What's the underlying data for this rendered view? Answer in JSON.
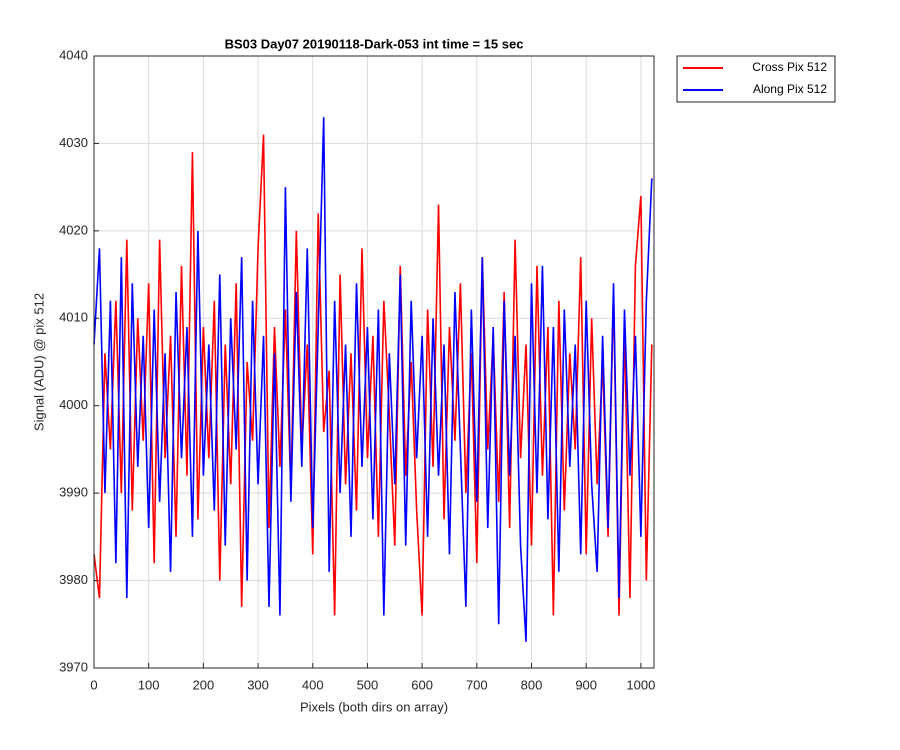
{
  "chart_data": {
    "type": "line",
    "title": "BS03 Day07 20190118-Dark-053 int time = 15 sec",
    "x_label": "Pixels (both dirs on array)",
    "y_label": "Signal (ADU) @ pix 512",
    "x": [
      0,
      10,
      20,
      30,
      40,
      50,
      60,
      70,
      80,
      90,
      100,
      110,
      120,
      130,
      140,
      150,
      160,
      170,
      180,
      190,
      200,
      210,
      220,
      230,
      240,
      250,
      260,
      270,
      280,
      290,
      300,
      310,
      320,
      330,
      340,
      350,
      360,
      370,
      380,
      390,
      400,
      410,
      420,
      430,
      440,
      450,
      460,
      470,
      480,
      490,
      500,
      510,
      520,
      530,
      540,
      550,
      560,
      570,
      580,
      590,
      600,
      610,
      620,
      630,
      640,
      650,
      660,
      670,
      680,
      690,
      700,
      710,
      720,
      730,
      740,
      750,
      760,
      770,
      780,
      790,
      800,
      810,
      820,
      830,
      840,
      850,
      860,
      870,
      880,
      890,
      900,
      910,
      920,
      930,
      940,
      950,
      960,
      970,
      980,
      990,
      1000,
      1010,
      1020
    ],
    "series": [
      {
        "name": "Cross Pix 512",
        "color": "#ff0000",
        "values": [
          3983,
          3978,
          4006,
          3995,
          4012,
          3990,
          4019,
          3988,
          4010,
          3996,
          4014,
          3982,
          4019,
          3994,
          4008,
          3985,
          4016,
          3992,
          4029,
          3987,
          4009,
          3994,
          4012,
          3980,
          4007,
          3991,
          4014,
          3977,
          4005,
          3996,
          4018,
          4031,
          3986,
          4009,
          3993,
          4011,
          3990,
          4020,
          3995,
          4007,
          3983,
          4022,
          3997,
          4004,
          3976,
          4015,
          3991,
          4006,
          3988,
          4018,
          3994,
          4008,
          3985,
          4012,
          3999,
          3984,
          4016,
          3992,
          4005,
          3988,
          3976,
          4011,
          3993,
          4023,
          3987,
          4009,
          3996,
          4014,
          3990,
          4006,
          3982,
          4017,
          3995,
          4008,
          3989,
          4013,
          3986,
          4019,
          3994,
          4007,
          3984,
          4016,
          3992,
          4009,
          3976,
          4012,
          3988,
          4006,
          3995,
          4017,
          3983,
          4010,
          3991,
          4005,
          3985,
          4013,
          3976,
          4009,
          3978,
          4016,
          4024,
          3980,
          4007
        ]
      },
      {
        "name": "Along Pix 512",
        "color": "#0000ff",
        "values": [
          4007,
          4018,
          3990,
          4012,
          3982,
          4017,
          3978,
          4014,
          3993,
          4008,
          3986,
          4011,
          3989,
          4006,
          3981,
          4013,
          3994,
          4009,
          3985,
          4020,
          3992,
          4007,
          3988,
          4015,
          3984,
          4010,
          3995,
          4017,
          3980,
          4012,
          3991,
          4008,
          3977,
          4006,
          3976,
          4025,
          3989,
          4013,
          3993,
          4018,
          3986,
          4009,
          4033,
          3981,
          4012,
          3990,
          4007,
          3985,
          4014,
          3993,
          4009,
          3987,
          4011,
          3976,
          4006,
          3991,
          4015,
          3984,
          4012,
          3994,
          4008,
          3985,
          4010,
          3992,
          4007,
          3983,
          4013,
          3995,
          3977,
          4011,
          3989,
          4017,
          3986,
          4009,
          3975,
          4012,
          3992,
          4008,
          3984,
          3973,
          4014,
          3990,
          4016,
          3987,
          4009,
          3981,
          4011,
          3993,
          4007,
          3983,
          4012,
          3991,
          3981,
          4008,
          3986,
          4014,
          3978,
          4011,
          3992,
          4008,
          3985,
          4012,
          4026
        ]
      }
    ],
    "xlim": [
      0,
      1024
    ],
    "ylim": [
      3970,
      4040
    ],
    "xticks": [
      0,
      100,
      200,
      300,
      400,
      500,
      600,
      700,
      800,
      900,
      1000
    ],
    "yticks": [
      3970,
      3980,
      3990,
      4000,
      4010,
      4020,
      4030,
      4040
    ],
    "grid": true,
    "legend": "outside-top-right"
  }
}
